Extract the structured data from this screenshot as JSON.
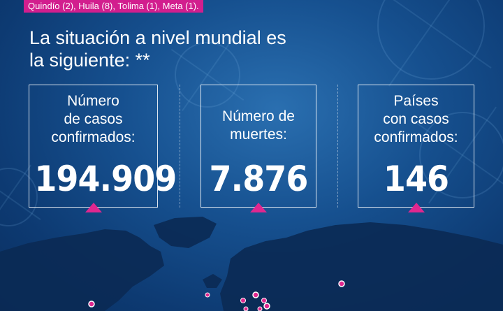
{
  "banner": {
    "text": "Quindío (2), Huila (8), Tolima (1), Meta (1)."
  },
  "headline": {
    "line1": "La situación a nivel mundial es",
    "line2": "la siguiente: **"
  },
  "stats": [
    {
      "label": "Número\nde casos\nconfirmados:",
      "value": "194.909"
    },
    {
      "label": "Número de\nmuertes:",
      "value": "7.876"
    },
    {
      "label": "Países\ncon casos\nconfirmados:",
      "value": "146"
    }
  ],
  "colors": {
    "accent": "#e0278f",
    "background": "#16508f",
    "land": "#0b2a55",
    "text": "#ffffff"
  },
  "map": {
    "icon": "world-map-icon"
  }
}
